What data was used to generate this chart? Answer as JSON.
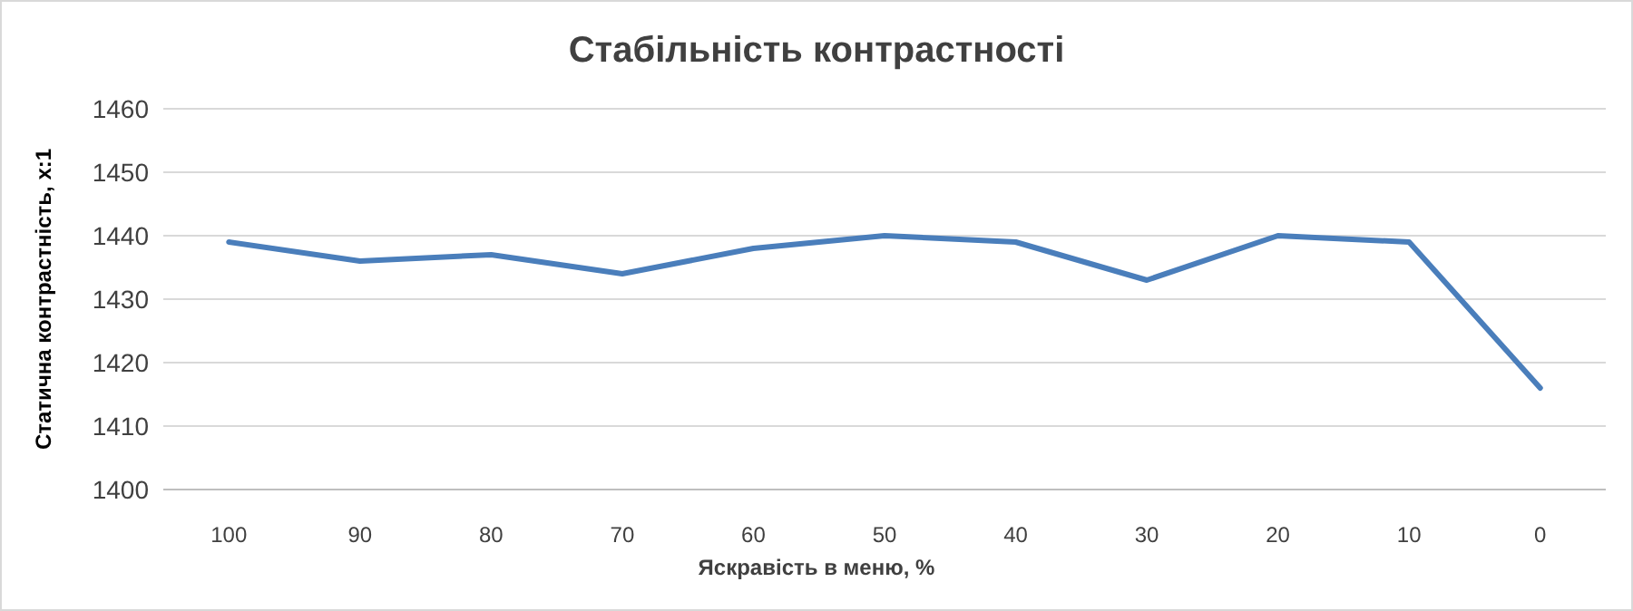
{
  "chart_data": {
    "type": "line",
    "title": "Стабільність контрастності",
    "xlabel": "Яскравість в меню, %",
    "ylabel": "Статична контрастність, x:1",
    "categories": [
      "100",
      "90",
      "80",
      "70",
      "60",
      "50",
      "40",
      "30",
      "20",
      "10",
      "0"
    ],
    "series": [
      {
        "color": "#4a7ebb",
        "values": [
          1439,
          1436,
          1437,
          1434,
          1438,
          1440,
          1439,
          1433,
          1440,
          1439,
          1416
        ]
      }
    ],
    "ylim": [
      1400,
      1460
    ],
    "yticks": [
      1400,
      1410,
      1420,
      1430,
      1440,
      1450,
      1460
    ],
    "grid": "y",
    "legend": false,
    "marker": "none",
    "line_style": "solid"
  }
}
